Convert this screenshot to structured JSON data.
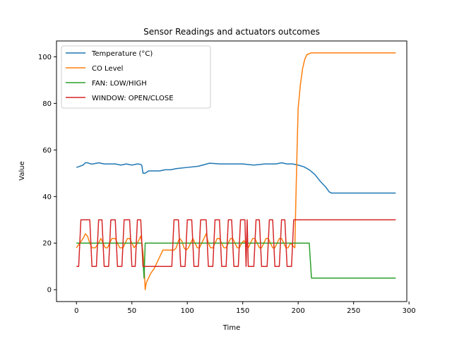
{
  "chart_data": {
    "type": "line",
    "title": "Sensor Readings and actuators outcomes",
    "xlabel": "Time",
    "ylabel": "Value",
    "xlim": [
      -18,
      298
    ],
    "ylim": [
      -5.1,
      106.8
    ],
    "xticks": [
      0,
      50,
      100,
      150,
      200,
      250,
      300
    ],
    "yticks": [
      0,
      20,
      40,
      60,
      80,
      100
    ],
    "legend_position": "upper-left",
    "grid": false,
    "series": [
      {
        "name": "Temperature (°C)",
        "color": "#1f77b4",
        "points": [
          [
            0,
            52.5
          ],
          [
            3,
            53
          ],
          [
            6,
            53.5
          ],
          [
            8,
            54.5
          ],
          [
            10,
            54.5
          ],
          [
            13,
            54
          ],
          [
            15,
            54
          ],
          [
            20,
            54.5
          ],
          [
            25,
            54
          ],
          [
            35,
            54
          ],
          [
            40,
            53.5
          ],
          [
            45,
            54
          ],
          [
            50,
            53.5
          ],
          [
            55,
            54
          ],
          [
            58,
            53.8
          ],
          [
            59,
            53.3
          ],
          [
            60,
            50
          ],
          [
            62,
            50
          ],
          [
            65,
            51
          ],
          [
            75,
            51
          ],
          [
            80,
            51.5
          ],
          [
            85,
            51.5
          ],
          [
            90,
            52
          ],
          [
            100,
            52.5
          ],
          [
            110,
            53
          ],
          [
            120,
            54.3
          ],
          [
            130,
            54
          ],
          [
            150,
            54
          ],
          [
            160,
            53.5
          ],
          [
            170,
            54
          ],
          [
            180,
            54
          ],
          [
            185,
            54.5
          ],
          [
            190,
            54
          ],
          [
            195,
            54
          ],
          [
            200,
            53.5
          ],
          [
            205,
            52.8
          ],
          [
            210,
            51.5
          ],
          [
            215,
            49.5
          ],
          [
            220,
            46.5
          ],
          [
            225,
            44
          ],
          [
            228,
            42
          ],
          [
            230,
            41.5
          ],
          [
            288,
            41.5
          ]
        ]
      },
      {
        "name": "CO Level",
        "color": "#ff7f0e",
        "points": [
          [
            0,
            18
          ],
          [
            3,
            20
          ],
          [
            6,
            22
          ],
          [
            8,
            24
          ],
          [
            10,
            23
          ],
          [
            12,
            20
          ],
          [
            14,
            18
          ],
          [
            17,
            18
          ],
          [
            20,
            20
          ],
          [
            22,
            22
          ],
          [
            24,
            20
          ],
          [
            26,
            18
          ],
          [
            28,
            18
          ],
          [
            30,
            20
          ],
          [
            32,
            22
          ],
          [
            35,
            22
          ],
          [
            37,
            20
          ],
          [
            39,
            18
          ],
          [
            42,
            18
          ],
          [
            44,
            20
          ],
          [
            46,
            22
          ],
          [
            48,
            22
          ],
          [
            50,
            20
          ],
          [
            52,
            18
          ],
          [
            55,
            20
          ],
          [
            57,
            22
          ],
          [
            58,
            23
          ],
          [
            59,
            20
          ],
          [
            60,
            16
          ],
          [
            61,
            10
          ],
          [
            62,
            0
          ],
          [
            63,
            3
          ],
          [
            65,
            5
          ],
          [
            67,
            7
          ],
          [
            70,
            9
          ],
          [
            72,
            11
          ],
          [
            75,
            14
          ],
          [
            78,
            17
          ],
          [
            80,
            17
          ],
          [
            88,
            17
          ],
          [
            90,
            18
          ],
          [
            92,
            21
          ],
          [
            93,
            22
          ],
          [
            95,
            21
          ],
          [
            97,
            18
          ],
          [
            99,
            17
          ],
          [
            101,
            18
          ],
          [
            103,
            20
          ],
          [
            105,
            22
          ],
          [
            107,
            20
          ],
          [
            109,
            18
          ],
          [
            111,
            18
          ],
          [
            113,
            20
          ],
          [
            115,
            22
          ],
          [
            117,
            24
          ],
          [
            119,
            20
          ],
          [
            121,
            18
          ],
          [
            123,
            18
          ],
          [
            125,
            20
          ],
          [
            127,
            22
          ],
          [
            129,
            22
          ],
          [
            131,
            20
          ],
          [
            133,
            18
          ],
          [
            135,
            18
          ],
          [
            137,
            20
          ],
          [
            139,
            22
          ],
          [
            141,
            22
          ],
          [
            143,
            20
          ],
          [
            145,
            18
          ],
          [
            147,
            18
          ],
          [
            149,
            20
          ],
          [
            151,
            21
          ],
          [
            153,
            20
          ],
          [
            155,
            18
          ],
          [
            157,
            20
          ],
          [
            159,
            22
          ],
          [
            161,
            22
          ],
          [
            163,
            20
          ],
          [
            165,
            18
          ],
          [
            167,
            18
          ],
          [
            169,
            20
          ],
          [
            171,
            22
          ],
          [
            173,
            22
          ],
          [
            175,
            20
          ],
          [
            177,
            18
          ],
          [
            179,
            18
          ],
          [
            181,
            20
          ],
          [
            183,
            22
          ],
          [
            185,
            22
          ],
          [
            187,
            20
          ],
          [
            189,
            18
          ],
          [
            191,
            18
          ],
          [
            193,
            20
          ],
          [
            195,
            19
          ],
          [
            197,
            18
          ],
          [
            198,
            40
          ],
          [
            199,
            60
          ],
          [
            200,
            78
          ],
          [
            202,
            88
          ],
          [
            204,
            95
          ],
          [
            206,
            99
          ],
          [
            208,
            101
          ],
          [
            212,
            101.7
          ],
          [
            288,
            101.7
          ]
        ]
      },
      {
        "name": "FAN: LOW/HIGH",
        "color": "#2ca02c",
        "points": [
          [
            0,
            20
          ],
          [
            59,
            20
          ],
          [
            61,
            5
          ],
          [
            62,
            20
          ],
          [
            210,
            20
          ],
          [
            212,
            5
          ],
          [
            288,
            5
          ]
        ]
      },
      {
        "name": "WINDOW: OPEN/CLOSE",
        "color": "#d62728",
        "points": [
          [
            0,
            10
          ],
          [
            2,
            10
          ],
          [
            4,
            30
          ],
          [
            12,
            30
          ],
          [
            14,
            10
          ],
          [
            18,
            10
          ],
          [
            20,
            30
          ],
          [
            23,
            30
          ],
          [
            25,
            10
          ],
          [
            29,
            10
          ],
          [
            31,
            30
          ],
          [
            35,
            30
          ],
          [
            37,
            10
          ],
          [
            41,
            10
          ],
          [
            43,
            30
          ],
          [
            48,
            30
          ],
          [
            50,
            10
          ],
          [
            53,
            10
          ],
          [
            55,
            30
          ],
          [
            58,
            30
          ],
          [
            60,
            10
          ],
          [
            86,
            10
          ],
          [
            88,
            30
          ],
          [
            92,
            30
          ],
          [
            94,
            10
          ],
          [
            98,
            10
          ],
          [
            100,
            30
          ],
          [
            104,
            30
          ],
          [
            106,
            10
          ],
          [
            110,
            10
          ],
          [
            112,
            30
          ],
          [
            117,
            30
          ],
          [
            119,
            10
          ],
          [
            123,
            10
          ],
          [
            125,
            30
          ],
          [
            129,
            30
          ],
          [
            131,
            10
          ],
          [
            135,
            10
          ],
          [
            137,
            30
          ],
          [
            140,
            30
          ],
          [
            142,
            10
          ],
          [
            146,
            10
          ],
          [
            148,
            30
          ],
          [
            152,
            30
          ],
          [
            153,
            10
          ],
          [
            154,
            30
          ],
          [
            155,
            10
          ],
          [
            160,
            10
          ],
          [
            162,
            30
          ],
          [
            165,
            30
          ],
          [
            167,
            10
          ],
          [
            172,
            10
          ],
          [
            174,
            30
          ],
          [
            177,
            30
          ],
          [
            179,
            10
          ],
          [
            183,
            10
          ],
          [
            185,
            30
          ],
          [
            188,
            30
          ],
          [
            190,
            10
          ],
          [
            194,
            10
          ],
          [
            196,
            30
          ],
          [
            198,
            30
          ],
          [
            288,
            30
          ]
        ]
      }
    ]
  }
}
